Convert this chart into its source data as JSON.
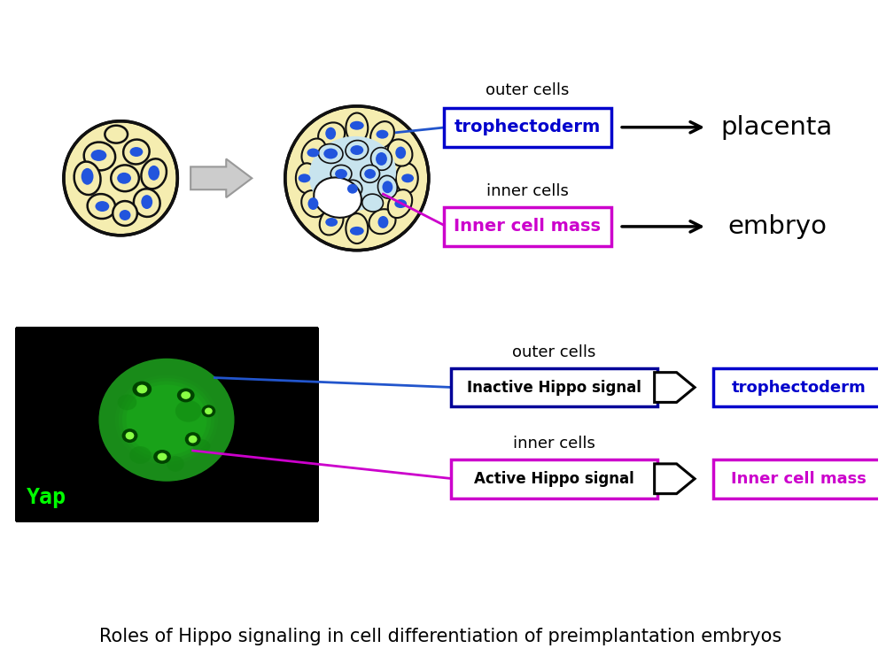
{
  "title": "Roles of Hippo signaling in cell differentiation of preimplantation embryos",
  "title_fontsize": 15,
  "background_color": "#ffffff",
  "top_section": {
    "outer_cells_label": "outer cells",
    "inner_cells_label": "inner cells",
    "trophectoderm_label": "trophectoderm",
    "trophectoderm_color": "#0000cc",
    "inner_cell_mass_label": "Inner cell mass",
    "inner_cell_mass_color": "#cc00cc",
    "placenta_label": "placenta",
    "embryo_label": "embryo"
  },
  "bottom_section": {
    "outer_cells_label": "outer cells",
    "inner_cells_label": "inner cells",
    "inactive_label": "Inactive Hippo signal",
    "active_label": "Active Hippo signal",
    "trophectoderm_label": "trophectoderm",
    "trophectoderm_color": "#0000cc",
    "inner_cell_mass_label": "Inner cell mass",
    "inner_cell_mass_color": "#cc00cc",
    "yap_label": "Yap",
    "yap_color": "#00ff00"
  },
  "morula_color": "#f5edb0",
  "morula_border": "#111111",
  "nucleus_color": "#2255dd",
  "blast_outer_color": "#f5edb0",
  "blast_inner_color": "#c8e4ee",
  "blast_icm_color": "#c8e4ee",
  "gray_arrow_color": "#cccccc",
  "gray_arrow_edge": "#999999"
}
